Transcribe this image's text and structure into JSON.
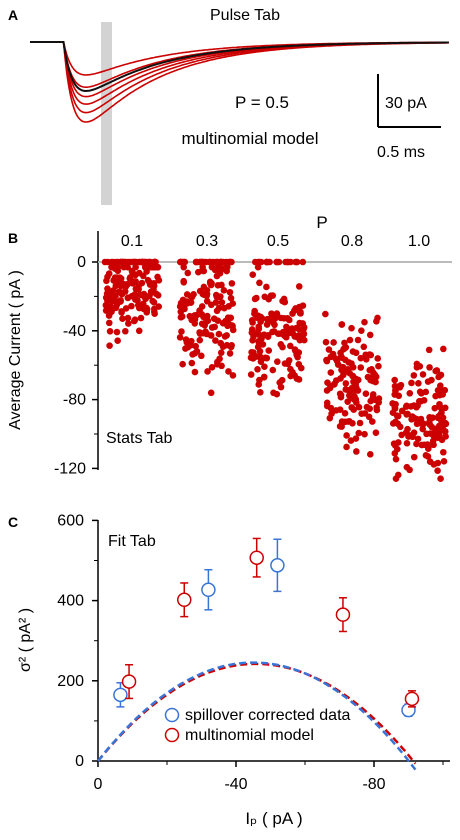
{
  "panels": {
    "a": {
      "label": "A",
      "title": "Pulse Tab",
      "annotation_p": "P = 0.5",
      "annotation_model": "multinomial model",
      "scalebar_y": "30 pA",
      "scalebar_x": "0.5 ms"
    },
    "b": {
      "label": "B",
      "p_title": "P",
      "ylabel": "Average Current ( pA )",
      "tab_label": "Stats Tab"
    },
    "c": {
      "label": "C",
      "tab_label": "Fit Tab",
      "ylabel": "σ² ( pA² )",
      "xlabel": "Iₚ ( pA )",
      "legend": [
        "spillover corrected data",
        "multinomial model"
      ]
    }
  },
  "colors": {
    "red": "#cc0000",
    "blue": "#3a74d6",
    "black": "#111111",
    "gray": "#bbbbbb",
    "band": "#d3d3d3"
  },
  "chart_data": [
    {
      "id": "A",
      "type": "line",
      "description_series": {
        "average": "black",
        "individual": "red"
      },
      "traces": [
        {
          "color": "red",
          "peak": -35
        },
        {
          "color": "red",
          "peak": -48
        },
        {
          "color": "red",
          "peak": -58
        },
        {
          "color": "red",
          "peak": -66
        },
        {
          "color": "red",
          "peak": -75
        },
        {
          "color": "red",
          "peak": -85
        },
        {
          "color": "black",
          "peak": -52
        }
      ]
    },
    {
      "id": "B",
      "type": "scatter",
      "categories": [
        "0.1",
        "0.3",
        "0.5",
        "0.8",
        "1.0"
      ],
      "means": [
        -18,
        -30,
        -45,
        -70,
        -90
      ],
      "spread": [
        20,
        28,
        30,
        32,
        28
      ],
      "zero_counts": [
        40,
        35,
        20,
        0,
        0
      ],
      "yticks": [
        0,
        -40,
        -80,
        -120
      ],
      "ylim": [
        -130,
        10
      ]
    },
    {
      "id": "C",
      "type": "scatter",
      "xticks": [
        0,
        -40,
        -80
      ],
      "yticks": [
        0,
        200,
        400,
        600
      ],
      "xlim": [
        0,
        -100
      ],
      "ylim": [
        0,
        600
      ],
      "series": [
        {
          "name": "spillover corrected data",
          "color": "blue",
          "points": [
            [
              -6.5,
              165,
              30
            ],
            [
              -32,
              427,
              50
            ],
            [
              -52,
              488,
              65
            ],
            [
              -90,
              127,
              15
            ]
          ]
        },
        {
          "name": "multinomial model",
          "color": "red",
          "points": [
            [
              -9,
              198,
              42
            ],
            [
              -25,
              402,
              42
            ],
            [
              -46,
              507,
              48
            ],
            [
              -71,
              365,
              42
            ],
            [
              -91,
              155,
              20
            ]
          ]
        }
      ],
      "fits": [
        {
          "color": "red",
          "a": -10.6,
          "b": -0.116
        },
        {
          "color": "blue",
          "a": -10.9,
          "b": -0.121
        }
      ]
    }
  ]
}
